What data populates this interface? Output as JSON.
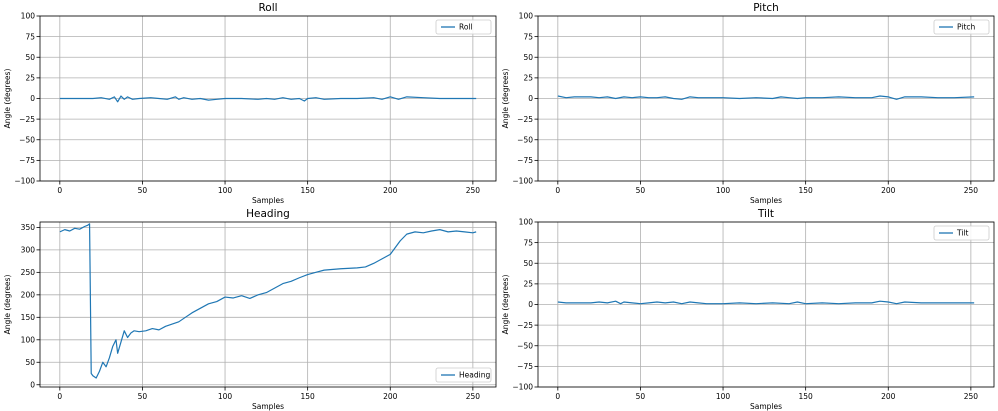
{
  "chart_data": [
    {
      "type": "line",
      "title": "Roll",
      "xlabel": "Samples",
      "ylabel": "Angle (degrees)",
      "xlim": [
        -12,
        264
      ],
      "ylim": [
        -100,
        100
      ],
      "xticks": [
        0,
        50,
        100,
        150,
        200,
        250
      ],
      "yticks": [
        -100,
        -75,
        -50,
        -25,
        0,
        25,
        50,
        75,
        100
      ],
      "grid": true,
      "legend_position": "upper right",
      "color": "#1f77b4",
      "series": [
        {
          "name": "Roll",
          "x": [
            0,
            10,
            20,
            25,
            30,
            33,
            35,
            37,
            39,
            41,
            44,
            48,
            55,
            60,
            65,
            70,
            72,
            75,
            80,
            85,
            90,
            95,
            100,
            110,
            120,
            125,
            130,
            135,
            140,
            145,
            148,
            150,
            155,
            160,
            170,
            180,
            190,
            195,
            200,
            205,
            210,
            220,
            230,
            240,
            252
          ],
          "y": [
            0,
            0,
            0,
            1,
            -1,
            2,
            -4,
            3,
            -1,
            2,
            -1,
            0,
            1,
            0,
            -1,
            2,
            -1,
            1,
            -1,
            0,
            -2,
            -1,
            0,
            0,
            -1,
            0,
            -1,
            1,
            -1,
            0,
            -3,
            0,
            1,
            -1,
            0,
            0,
            1,
            -1,
            2,
            -1,
            2,
            1,
            0,
            0,
            0
          ]
        }
      ]
    },
    {
      "type": "line",
      "title": "Pitch",
      "xlabel": "Samples",
      "ylabel": "Angle (degrees)",
      "xlim": [
        -12,
        264
      ],
      "ylim": [
        -100,
        100
      ],
      "xticks": [
        0,
        50,
        100,
        150,
        200,
        250
      ],
      "yticks": [
        -100,
        -75,
        -50,
        -25,
        0,
        25,
        50,
        75,
        100
      ],
      "grid": true,
      "legend_position": "upper right",
      "color": "#1f77b4",
      "series": [
        {
          "name": "Pitch",
          "x": [
            0,
            5,
            10,
            20,
            25,
            30,
            35,
            40,
            45,
            50,
            55,
            60,
            65,
            70,
            75,
            80,
            85,
            90,
            100,
            110,
            120,
            130,
            135,
            140,
            145,
            150,
            160,
            170,
            180,
            190,
            195,
            200,
            205,
            210,
            220,
            230,
            240,
            252
          ],
          "y": [
            3,
            1,
            2,
            2,
            1,
            2,
            0,
            2,
            1,
            2,
            1,
            1,
            2,
            0,
            -1,
            2,
            1,
            1,
            1,
            0,
            1,
            0,
            2,
            1,
            0,
            1,
            1,
            2,
            1,
            1,
            3,
            2,
            -1,
            2,
            2,
            1,
            1,
            2
          ]
        }
      ]
    },
    {
      "type": "line",
      "title": "Heading",
      "xlabel": "Samples",
      "ylabel": "Angle (degrees)",
      "xlim": [
        -12,
        264
      ],
      "ylim": [
        -5,
        362
      ],
      "xticks": [
        0,
        50,
        100,
        150,
        200,
        250
      ],
      "yticks": [
        0,
        50,
        100,
        150,
        200,
        250,
        300,
        350
      ],
      "grid": true,
      "legend_position": "lower right",
      "color": "#1f77b4",
      "series": [
        {
          "name": "Heading",
          "x": [
            0,
            3,
            6,
            9,
            12,
            15,
            17,
            18,
            19,
            20,
            22,
            24,
            26,
            28,
            30,
            32,
            34,
            35,
            37,
            39,
            41,
            43,
            45,
            48,
            52,
            56,
            60,
            64,
            68,
            72,
            76,
            80,
            85,
            90,
            95,
            100,
            105,
            110,
            115,
            120,
            125,
            130,
            135,
            140,
            145,
            150,
            155,
            160,
            170,
            180,
            185,
            190,
            195,
            200,
            203,
            206,
            210,
            215,
            220,
            225,
            230,
            235,
            240,
            245,
            250,
            252
          ],
          "y": [
            340,
            345,
            342,
            348,
            346,
            352,
            355,
            358,
            25,
            20,
            15,
            30,
            50,
            40,
            60,
            85,
            100,
            70,
            95,
            120,
            105,
            115,
            120,
            118,
            120,
            125,
            122,
            130,
            135,
            140,
            150,
            160,
            170,
            180,
            185,
            195,
            193,
            198,
            192,
            200,
            205,
            215,
            225,
            230,
            238,
            245,
            250,
            255,
            258,
            260,
            262,
            270,
            280,
            290,
            305,
            320,
            335,
            340,
            338,
            342,
            345,
            340,
            342,
            340,
            338,
            340
          ]
        }
      ]
    },
    {
      "type": "line",
      "title": "Tilt",
      "xlabel": "Samples",
      "ylabel": "Angle (degrees)",
      "xlim": [
        -12,
        264
      ],
      "ylim": [
        -100,
        100
      ],
      "xticks": [
        0,
        50,
        100,
        150,
        200,
        250
      ],
      "yticks": [
        -100,
        -75,
        -50,
        -25,
        0,
        25,
        50,
        75,
        100
      ],
      "grid": true,
      "legend_position": "upper right",
      "color": "#1f77b4",
      "series": [
        {
          "name": "Tilt",
          "x": [
            0,
            5,
            10,
            20,
            25,
            30,
            35,
            38,
            40,
            45,
            50,
            55,
            60,
            65,
            70,
            75,
            80,
            85,
            90,
            100,
            110,
            120,
            130,
            140,
            145,
            150,
            160,
            170,
            180,
            190,
            195,
            200,
            205,
            210,
            220,
            230,
            240,
            252
          ],
          "y": [
            3,
            2,
            2,
            2,
            3,
            2,
            4,
            1,
            3,
            2,
            1,
            2,
            3,
            2,
            3,
            1,
            3,
            2,
            1,
            1,
            2,
            1,
            2,
            1,
            3,
            1,
            2,
            1,
            2,
            2,
            4,
            3,
            1,
            3,
            2,
            2,
            2,
            2
          ]
        }
      ]
    }
  ]
}
